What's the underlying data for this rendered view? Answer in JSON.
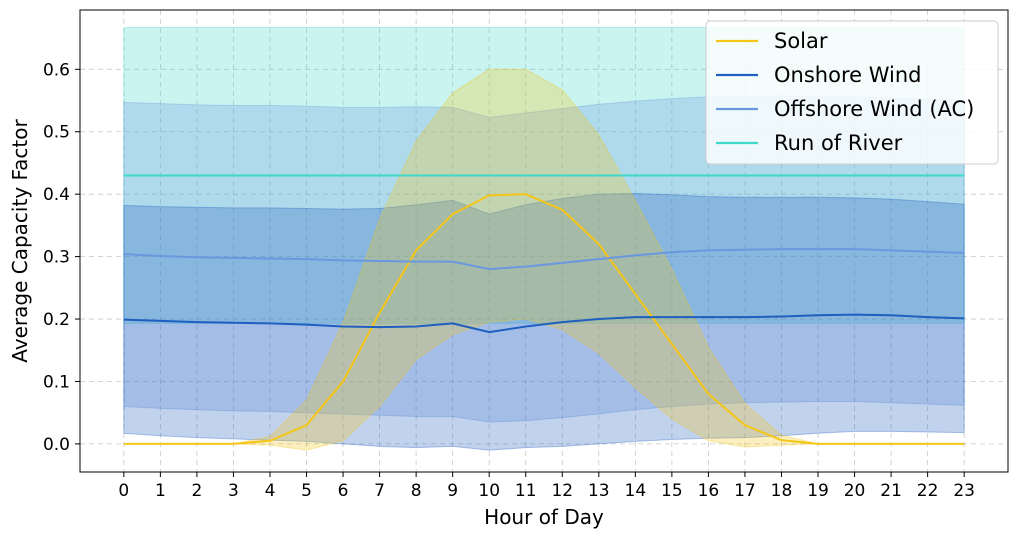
{
  "chart_data": {
    "type": "line",
    "xlabel": "Hour of Day",
    "ylabel": "Average Capacity Factor",
    "x": [
      0,
      1,
      2,
      3,
      4,
      5,
      6,
      7,
      8,
      9,
      10,
      11,
      12,
      13,
      14,
      15,
      16,
      17,
      18,
      19,
      20,
      21,
      22,
      23
    ],
    "xlim": [
      -1.2,
      24.2
    ],
    "ylim": [
      -0.045,
      0.695
    ],
    "yticks": [
      0.0,
      0.1,
      0.2,
      0.3,
      0.4,
      0.5,
      0.6
    ],
    "ytick_labels": [
      "0.0",
      "0.1",
      "0.2",
      "0.3",
      "0.4",
      "0.5",
      "0.6"
    ],
    "grid": true,
    "legend_position": "top-right",
    "series": [
      {
        "name": "Solar",
        "color": "#f5c518",
        "values": [
          0,
          0,
          0,
          0,
          0.005,
          0.03,
          0.1,
          0.21,
          0.31,
          0.368,
          0.398,
          0.4,
          0.375,
          0.32,
          0.24,
          0.16,
          0.08,
          0.03,
          0.006,
          0,
          0,
          0,
          0,
          0
        ],
        "band_lower": [
          0,
          0,
          0,
          0,
          -0.002,
          -0.01,
          0.005,
          0.06,
          0.135,
          0.175,
          0.195,
          0.2,
          0.183,
          0.145,
          0.09,
          0.04,
          0.005,
          -0.005,
          -0.002,
          0,
          0,
          0,
          0,
          0
        ],
        "band_upper": [
          0,
          0,
          0,
          0,
          0.012,
          0.07,
          0.195,
          0.36,
          0.485,
          0.562,
          0.6,
          0.6,
          0.567,
          0.495,
          0.39,
          0.28,
          0.155,
          0.065,
          0.014,
          0,
          0,
          0,
          0,
          0
        ]
      },
      {
        "name": "Onshore Wind",
        "color": "#1f5fbf",
        "values": [
          0.199,
          0.197,
          0.195,
          0.194,
          0.193,
          0.191,
          0.188,
          0.187,
          0.188,
          0.193,
          0.179,
          0.188,
          0.195,
          0.2,
          0.203,
          0.203,
          0.203,
          0.203,
          0.204,
          0.206,
          0.207,
          0.206,
          0.203,
          0.201
        ],
        "band_lower": [
          0.017,
          0.013,
          0.01,
          0.008,
          0.006,
          0.004,
          0.0,
          -0.004,
          -0.006,
          -0.004,
          -0.01,
          -0.006,
          -0.004,
          0.0,
          0.004,
          0.007,
          0.009,
          0.01,
          0.013,
          0.017,
          0.02,
          0.02,
          0.019,
          0.018
        ],
        "band_upper": [
          0.382,
          0.38,
          0.379,
          0.378,
          0.378,
          0.377,
          0.376,
          0.377,
          0.383,
          0.39,
          0.368,
          0.383,
          0.393,
          0.4,
          0.401,
          0.399,
          0.396,
          0.395,
          0.395,
          0.395,
          0.394,
          0.392,
          0.388,
          0.384
        ]
      },
      {
        "name": "Offshore Wind (AC)",
        "color": "#6a98e0",
        "values": [
          0.304,
          0.301,
          0.299,
          0.298,
          0.297,
          0.296,
          0.294,
          0.293,
          0.292,
          0.292,
          0.28,
          0.284,
          0.29,
          0.296,
          0.302,
          0.307,
          0.31,
          0.311,
          0.312,
          0.312,
          0.312,
          0.31,
          0.308,
          0.306
        ],
        "band_lower": [
          0.06,
          0.057,
          0.055,
          0.053,
          0.052,
          0.05,
          0.048,
          0.046,
          0.044,
          0.044,
          0.035,
          0.037,
          0.042,
          0.048,
          0.055,
          0.06,
          0.064,
          0.066,
          0.067,
          0.068,
          0.068,
          0.066,
          0.064,
          0.062
        ],
        "band_upper": [
          0.547,
          0.545,
          0.543,
          0.542,
          0.542,
          0.541,
          0.539,
          0.539,
          0.54,
          0.539,
          0.523,
          0.53,
          0.537,
          0.544,
          0.549,
          0.553,
          0.556,
          0.556,
          0.557,
          0.556,
          0.556,
          0.554,
          0.552,
          0.55
        ]
      },
      {
        "name": "Run of River",
        "color": "#3fd9c8",
        "values": [
          0.43,
          0.43,
          0.43,
          0.43,
          0.43,
          0.43,
          0.43,
          0.43,
          0.43,
          0.43,
          0.43,
          0.43,
          0.43,
          0.43,
          0.43,
          0.43,
          0.43,
          0.43,
          0.43,
          0.43,
          0.43,
          0.43,
          0.43,
          0.43
        ],
        "band_lower": [
          0.193,
          0.193,
          0.193,
          0.193,
          0.193,
          0.193,
          0.193,
          0.193,
          0.193,
          0.193,
          0.193,
          0.193,
          0.193,
          0.193,
          0.193,
          0.193,
          0.193,
          0.193,
          0.193,
          0.193,
          0.193,
          0.193,
          0.193,
          0.193
        ],
        "band_upper": [
          0.667,
          0.667,
          0.667,
          0.667,
          0.667,
          0.667,
          0.667,
          0.667,
          0.667,
          0.667,
          0.667,
          0.667,
          0.667,
          0.667,
          0.667,
          0.667,
          0.667,
          0.667,
          0.667,
          0.667,
          0.667,
          0.667,
          0.667,
          0.667
        ]
      }
    ]
  }
}
